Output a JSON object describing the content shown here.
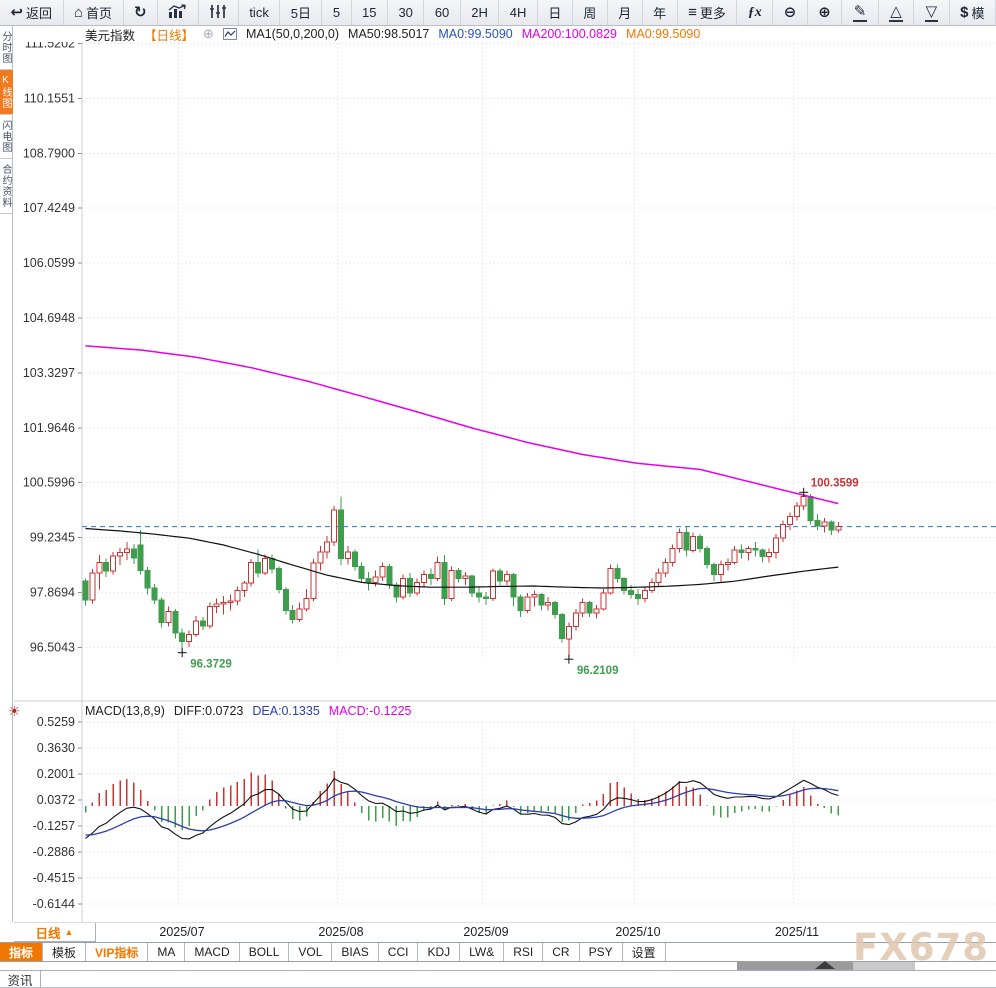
{
  "app": {
    "toolbar": {
      "items": [
        {
          "id": "back",
          "icon": "back-arrow-icon",
          "label": "返回"
        },
        {
          "id": "home",
          "icon": "home-icon",
          "label": "首页"
        },
        {
          "id": "refresh",
          "icon": "refresh-icon",
          "label": ""
        },
        {
          "id": "kline",
          "icon": "kline-chart-icon",
          "label": ""
        },
        {
          "id": "volume",
          "icon": "volume-bars-icon",
          "label": ""
        },
        {
          "id": "tick",
          "label": "tick"
        },
        {
          "id": "5d",
          "label": "5日"
        },
        {
          "id": "m5",
          "label": "5"
        },
        {
          "id": "m15",
          "label": "15"
        },
        {
          "id": "m30",
          "label": "30"
        },
        {
          "id": "m60",
          "label": "60"
        },
        {
          "id": "h2",
          "label": "2H"
        },
        {
          "id": "h4",
          "label": "4H"
        },
        {
          "id": "day",
          "label": "日"
        },
        {
          "id": "week",
          "label": "周"
        },
        {
          "id": "month",
          "label": "月"
        },
        {
          "id": "year",
          "label": "年"
        },
        {
          "id": "more",
          "icon": "menu-icon",
          "label": "更多"
        },
        {
          "id": "fx",
          "fx": true,
          "label": "ƒx"
        },
        {
          "id": "zoom-out",
          "icon": "zoom-out-icon",
          "label": ""
        },
        {
          "id": "zoom-in",
          "icon": "zoom-in-icon",
          "label": ""
        },
        {
          "id": "draw",
          "icon": "pencil-icon",
          "underline": true,
          "label": ""
        },
        {
          "id": "shape-up",
          "icon": "triangle-up-icon",
          "underline": true,
          "label": ""
        },
        {
          "id": "shape-down",
          "icon": "triangle-down-icon",
          "underline": true,
          "label": ""
        },
        {
          "id": "template",
          "icon": "dollar-icon",
          "label": "模"
        }
      ]
    },
    "main_legend": {
      "items": [
        {
          "name": "symbol-name",
          "text": "美元指数",
          "color": "#222222"
        },
        {
          "name": "period-label",
          "text": "【日线】",
          "color": "#f07800"
        },
        {
          "name": "add-compare-icon",
          "text": "⊕",
          "color": "#a9adb5",
          "icon": true
        },
        {
          "name": "mini-chart-icon",
          "svg": true
        },
        {
          "name": "ma-params",
          "text": "MA1(50,0,200,0)",
          "color": "#222222"
        },
        {
          "name": "ma50-value",
          "text": "MA50:98.5017",
          "color": "#222222"
        },
        {
          "name": "ma0-value-blue",
          "text": "MA0:99.5090",
          "color": "#2a52be"
        },
        {
          "name": "ma200-value",
          "text": "MA200:100.0829",
          "color": "#e600e6"
        },
        {
          "name": "ma0-value-orange",
          "text": "MA0:99.5090",
          "color": "#f07800"
        }
      ]
    },
    "macd_legend": {
      "items": [
        {
          "name": "macd-params",
          "text": "MACD(13,8,9)",
          "color": "#222222"
        },
        {
          "name": "diff-value",
          "text": "DIFF:0.0723",
          "color": "#222222"
        },
        {
          "name": "dea-value",
          "text": "DEA:0.1335",
          "color": "#2a3fae"
        },
        {
          "name": "macd-value",
          "text": "MACD:-0.1225",
          "color": "#e600e6"
        }
      ]
    },
    "left_tabs": [
      {
        "label": "分时图",
        "active": false
      },
      {
        "label": "K线图",
        "active": true
      },
      {
        "label": "闪电图",
        "active": false
      },
      {
        "label": "合约资料",
        "active": false
      }
    ],
    "period_selector": "日线",
    "bottom_tabs": [
      {
        "label": "指标",
        "style": "active"
      },
      {
        "label": "模板",
        "style": ""
      },
      {
        "label": "VIP指标",
        "style": "vip"
      },
      {
        "label": "MA",
        "style": ""
      },
      {
        "label": "MACD",
        "style": ""
      },
      {
        "label": "BOLL",
        "style": ""
      },
      {
        "label": "VOL",
        "style": ""
      },
      {
        "label": "BIAS",
        "style": ""
      },
      {
        "label": "CCI",
        "style": ""
      },
      {
        "label": "KDJ",
        "style": ""
      },
      {
        "label": "LW&",
        "style": ""
      },
      {
        "label": "RSI",
        "style": ""
      },
      {
        "label": "CR",
        "style": ""
      },
      {
        "label": "PSY",
        "style": ""
      },
      {
        "label": "设置",
        "style": ""
      }
    ],
    "watermark": "FX678",
    "news_tab": "资讯"
  },
  "chart_data": {
    "type": "candlestick",
    "title": "美元指数 日线 (US Dollar Index, daily)",
    "x_labels": [
      "2025/07",
      "2025/08",
      "2025/09",
      "2025/10",
      "2025/11"
    ],
    "y_ticks_main": [
      111.5202,
      110.1551,
      108.79,
      107.4249,
      106.0599,
      104.6948,
      103.3297,
      101.9646,
      100.5996,
      99.2345,
      97.8694,
      96.5043
    ],
    "y_ticks_macd": [
      0.5259,
      0.363,
      0.2001,
      0.0372,
      -0.1257,
      -0.2886,
      -0.4515,
      -0.6144
    ],
    "current_price": 99.509,
    "annotations": [
      {
        "i": 14,
        "price": 96.3729,
        "text": "96.3729",
        "kind": "low"
      },
      {
        "i": 70,
        "price": 96.2109,
        "text": "96.2109",
        "kind": "low"
      },
      {
        "i": 104,
        "price": 100.3599,
        "text": "100.3599",
        "kind": "high"
      }
    ],
    "colors": {
      "up": "#cc3333",
      "down": "#3f9e4d",
      "ma50": "#111111",
      "ma200": "#e600e6",
      "diff": "#111111",
      "dea": "#2a3fae",
      "grid": "#e4d6de",
      "price_line": "#1f78dc",
      "accent": "#f07800"
    },
    "candles": [
      [
        "2025-06-11",
        98.15,
        98.22,
        97.55,
        97.68
      ],
      [
        "2025-06-12",
        97.68,
        98.45,
        97.6,
        98.35
      ],
      [
        "2025-06-13",
        98.35,
        98.8,
        97.95,
        98.62
      ],
      [
        "2025-06-16",
        98.62,
        98.72,
        98.25,
        98.4
      ],
      [
        "2025-06-17",
        98.4,
        98.88,
        98.32,
        98.78
      ],
      [
        "2025-06-18",
        98.78,
        98.98,
        98.55,
        98.86
      ],
      [
        "2025-06-19",
        98.86,
        99.12,
        98.68,
        98.95
      ],
      [
        "2025-06-20",
        98.95,
        99.08,
        98.58,
        98.72
      ],
      [
        "2025-06-23",
        99.05,
        99.42,
        98.32,
        98.42
      ],
      [
        "2025-06-24",
        98.42,
        98.5,
        97.82,
        97.98
      ],
      [
        "2025-06-25",
        97.98,
        98.08,
        97.58,
        97.68
      ],
      [
        "2025-06-26",
        97.68,
        97.74,
        97.0,
        97.12
      ],
      [
        "2025-06-27",
        97.12,
        97.52,
        97.02,
        97.4
      ],
      [
        "2025-06-30",
        97.4,
        97.46,
        96.72,
        96.86
      ],
      [
        "2025-07-01",
        96.86,
        96.98,
        96.3729,
        96.65
      ],
      [
        "2025-07-02",
        96.65,
        96.92,
        96.52,
        96.82
      ],
      [
        "2025-07-03",
        96.82,
        97.28,
        96.76,
        97.16
      ],
      [
        "2025-07-04",
        97.16,
        97.26,
        96.94,
        97.04
      ],
      [
        "2025-07-07",
        97.04,
        97.62,
        96.98,
        97.52
      ],
      [
        "2025-07-08",
        97.52,
        97.72,
        97.36,
        97.58
      ],
      [
        "2025-07-09",
        97.58,
        97.78,
        97.32,
        97.62
      ],
      [
        "2025-07-10",
        97.62,
        97.82,
        97.42,
        97.66
      ],
      [
        "2025-07-11",
        97.66,
        98.02,
        97.56,
        97.92
      ],
      [
        "2025-07-14",
        97.92,
        98.16,
        97.76,
        98.1
      ],
      [
        "2025-07-15",
        98.1,
        98.7,
        98.02,
        98.62
      ],
      [
        "2025-07-16",
        98.62,
        98.94,
        98.24,
        98.36
      ],
      [
        "2025-07-17",
        98.36,
        98.82,
        98.3,
        98.72
      ],
      [
        "2025-07-18",
        98.72,
        98.82,
        98.34,
        98.46
      ],
      [
        "2025-07-21",
        98.46,
        98.52,
        97.84,
        97.94
      ],
      [
        "2025-07-22",
        97.94,
        98.0,
        97.32,
        97.42
      ],
      [
        "2025-07-23",
        97.42,
        97.56,
        97.1,
        97.2
      ],
      [
        "2025-07-24",
        97.2,
        97.62,
        97.14,
        97.46
      ],
      [
        "2025-07-25",
        97.46,
        97.96,
        97.4,
        97.72
      ],
      [
        "2025-07-28",
        97.72,
        98.7,
        97.66,
        98.6
      ],
      [
        "2025-07-29",
        98.6,
        99.02,
        98.42,
        98.88
      ],
      [
        "2025-07-30",
        98.88,
        99.28,
        98.72,
        99.12
      ],
      [
        "2025-07-31",
        99.12,
        100.02,
        99.02,
        99.92
      ],
      [
        "2025-08-01",
        99.92,
        100.26,
        98.55,
        98.72
      ],
      [
        "2025-08-04",
        98.72,
        99.02,
        98.56,
        98.88
      ],
      [
        "2025-08-05",
        98.88,
        98.94,
        98.42,
        98.52
      ],
      [
        "2025-08-06",
        98.52,
        98.62,
        98.1,
        98.22
      ],
      [
        "2025-08-07",
        98.22,
        98.38,
        97.92,
        98.12
      ],
      [
        "2025-08-08",
        98.12,
        98.42,
        98.02,
        98.26
      ],
      [
        "2025-08-11",
        98.26,
        98.62,
        98.16,
        98.52
      ],
      [
        "2025-08-12",
        98.52,
        98.58,
        97.96,
        98.06
      ],
      [
        "2025-08-13",
        98.06,
        98.12,
        97.62,
        97.76
      ],
      [
        "2025-08-14",
        97.76,
        98.32,
        97.7,
        98.22
      ],
      [
        "2025-08-15",
        98.22,
        98.36,
        97.76,
        97.86
      ],
      [
        "2025-08-18",
        97.86,
        98.22,
        97.8,
        98.12
      ],
      [
        "2025-08-19",
        98.12,
        98.42,
        98.02,
        98.32
      ],
      [
        "2025-08-20",
        98.32,
        98.46,
        98.06,
        98.22
      ],
      [
        "2025-08-21",
        98.22,
        98.76,
        98.16,
        98.62
      ],
      [
        "2025-08-22",
        98.62,
        98.8,
        97.56,
        97.72
      ],
      [
        "2025-08-25",
        97.72,
        98.52,
        97.66,
        98.42
      ],
      [
        "2025-08-26",
        98.42,
        98.48,
        98.12,
        98.22
      ],
      [
        "2025-08-27",
        98.22,
        98.38,
        98.06,
        98.28
      ],
      [
        "2025-08-28",
        98.28,
        98.32,
        97.76,
        97.86
      ],
      [
        "2025-08-29",
        97.86,
        98.02,
        97.62,
        97.76
      ],
      [
        "2025-09-01",
        97.76,
        97.88,
        97.56,
        97.72
      ],
      [
        "2025-09-02",
        97.72,
        98.46,
        97.66,
        98.4
      ],
      [
        "2025-09-03",
        98.4,
        98.46,
        98.06,
        98.16
      ],
      [
        "2025-09-04",
        98.16,
        98.42,
        98.06,
        98.32
      ],
      [
        "2025-09-05",
        98.32,
        98.36,
        97.52,
        97.76
      ],
      [
        "2025-09-08",
        97.76,
        97.82,
        97.26,
        97.42
      ],
      [
        "2025-09-09",
        97.42,
        97.86,
        97.36,
        97.76
      ],
      [
        "2025-09-10",
        97.76,
        97.92,
        97.52,
        97.82
      ],
      [
        "2025-09-11",
        97.82,
        97.86,
        97.42,
        97.56
      ],
      [
        "2025-09-12",
        97.56,
        97.76,
        97.42,
        97.62
      ],
      [
        "2025-09-15",
        97.62,
        97.66,
        97.22,
        97.32
      ],
      [
        "2025-09-16",
        97.32,
        97.36,
        96.62,
        96.72
      ],
      [
        "2025-09-17",
        96.72,
        97.12,
        96.2109,
        97.02
      ],
      [
        "2025-09-18",
        97.02,
        97.46,
        96.92,
        97.36
      ],
      [
        "2025-09-19",
        97.36,
        97.72,
        97.26,
        97.62
      ],
      [
        "2025-09-22",
        97.62,
        97.66,
        97.26,
        97.36
      ],
      [
        "2025-09-23",
        97.36,
        97.56,
        97.22,
        97.46
      ],
      [
        "2025-09-24",
        97.46,
        97.96,
        97.42,
        97.86
      ],
      [
        "2025-09-25",
        97.86,
        98.56,
        97.82,
        98.46
      ],
      [
        "2025-09-26",
        98.46,
        98.56,
        98.12,
        98.22
      ],
      [
        "2025-09-29",
        98.22,
        98.26,
        97.82,
        97.92
      ],
      [
        "2025-09-30",
        97.92,
        98.06,
        97.72,
        97.82
      ],
      [
        "2025-10-01",
        97.82,
        97.96,
        97.56,
        97.72
      ],
      [
        "2025-10-02",
        97.72,
        98.02,
        97.62,
        97.92
      ],
      [
        "2025-10-03",
        97.92,
        98.22,
        97.86,
        98.12
      ],
      [
        "2025-10-06",
        98.12,
        98.46,
        98.02,
        98.36
      ],
      [
        "2025-10-07",
        98.36,
        98.72,
        98.26,
        98.62
      ],
      [
        "2025-10-08",
        98.62,
        99.06,
        98.52,
        98.96
      ],
      [
        "2025-10-09",
        98.96,
        99.46,
        98.86,
        99.36
      ],
      [
        "2025-10-10",
        99.36,
        99.5,
        98.76,
        98.92
      ],
      [
        "2025-10-13",
        98.92,
        99.36,
        98.86,
        99.26
      ],
      [
        "2025-10-14",
        99.26,
        99.32,
        98.86,
        98.96
      ],
      [
        "2025-10-15",
        98.96,
        99.02,
        98.46,
        98.56
      ],
      [
        "2025-10-16",
        98.56,
        98.62,
        98.16,
        98.32
      ],
      [
        "2025-10-17",
        98.32,
        98.66,
        98.12,
        98.56
      ],
      [
        "2025-10-20",
        98.56,
        98.72,
        98.42,
        98.62
      ],
      [
        "2025-10-21",
        98.62,
        99.02,
        98.56,
        98.92
      ],
      [
        "2025-10-22",
        98.92,
        99.06,
        98.72,
        98.86
      ],
      [
        "2025-10-23",
        98.86,
        99.02,
        98.66,
        98.96
      ],
      [
        "2025-10-24",
        98.96,
        99.12,
        98.76,
        98.92
      ],
      [
        "2025-10-27",
        98.92,
        98.96,
        98.62,
        98.76
      ],
      [
        "2025-10-28",
        98.76,
        98.96,
        98.62,
        98.86
      ],
      [
        "2025-10-29",
        98.86,
        99.32,
        98.72,
        99.22
      ],
      [
        "2025-10-30",
        99.22,
        99.66,
        99.12,
        99.56
      ],
      [
        "2025-10-31",
        99.56,
        99.86,
        99.42,
        99.76
      ],
      [
        "2025-11-03",
        99.76,
        100.12,
        99.66,
        100.02
      ],
      [
        "2025-11-04",
        100.02,
        100.3599,
        99.92,
        100.26
      ],
      [
        "2025-11-05",
        100.26,
        100.32,
        99.56,
        99.66
      ],
      [
        "2025-11-06",
        99.66,
        99.82,
        99.42,
        99.52
      ],
      [
        "2025-11-07",
        99.52,
        99.72,
        99.36,
        99.62
      ],
      [
        "2025-11-10",
        99.62,
        99.66,
        99.3,
        99.42
      ],
      [
        "2025-11-11",
        99.42,
        99.62,
        99.36,
        99.509
      ]
    ],
    "ma50_points": [
      [
        0,
        99.46
      ],
      [
        5,
        99.4
      ],
      [
        10,
        99.32
      ],
      [
        15,
        99.22
      ],
      [
        20,
        99.05
      ],
      [
        25,
        98.82
      ],
      [
        30,
        98.55
      ],
      [
        35,
        98.3
      ],
      [
        40,
        98.12
      ],
      [
        45,
        98.04
      ],
      [
        50,
        98.0
      ],
      [
        55,
        98.0
      ],
      [
        60,
        98.02
      ],
      [
        65,
        98.03
      ],
      [
        70,
        98.0
      ],
      [
        75,
        97.98
      ],
      [
        80,
        98.0
      ],
      [
        85,
        98.03
      ],
      [
        89,
        98.07
      ],
      [
        94,
        98.15
      ],
      [
        99,
        98.28
      ],
      [
        104,
        98.4
      ],
      [
        109,
        98.5
      ]
    ],
    "ma200_points": [
      [
        0,
        104.0
      ],
      [
        8,
        103.9
      ],
      [
        16,
        103.72
      ],
      [
        24,
        103.46
      ],
      [
        32,
        103.13
      ],
      [
        40,
        102.75
      ],
      [
        48,
        102.36
      ],
      [
        56,
        101.96
      ],
      [
        64,
        101.6
      ],
      [
        72,
        101.3
      ],
      [
        80,
        101.08
      ],
      [
        89,
        100.93
      ],
      [
        99,
        100.5
      ],
      [
        109,
        100.08
      ]
    ]
  }
}
